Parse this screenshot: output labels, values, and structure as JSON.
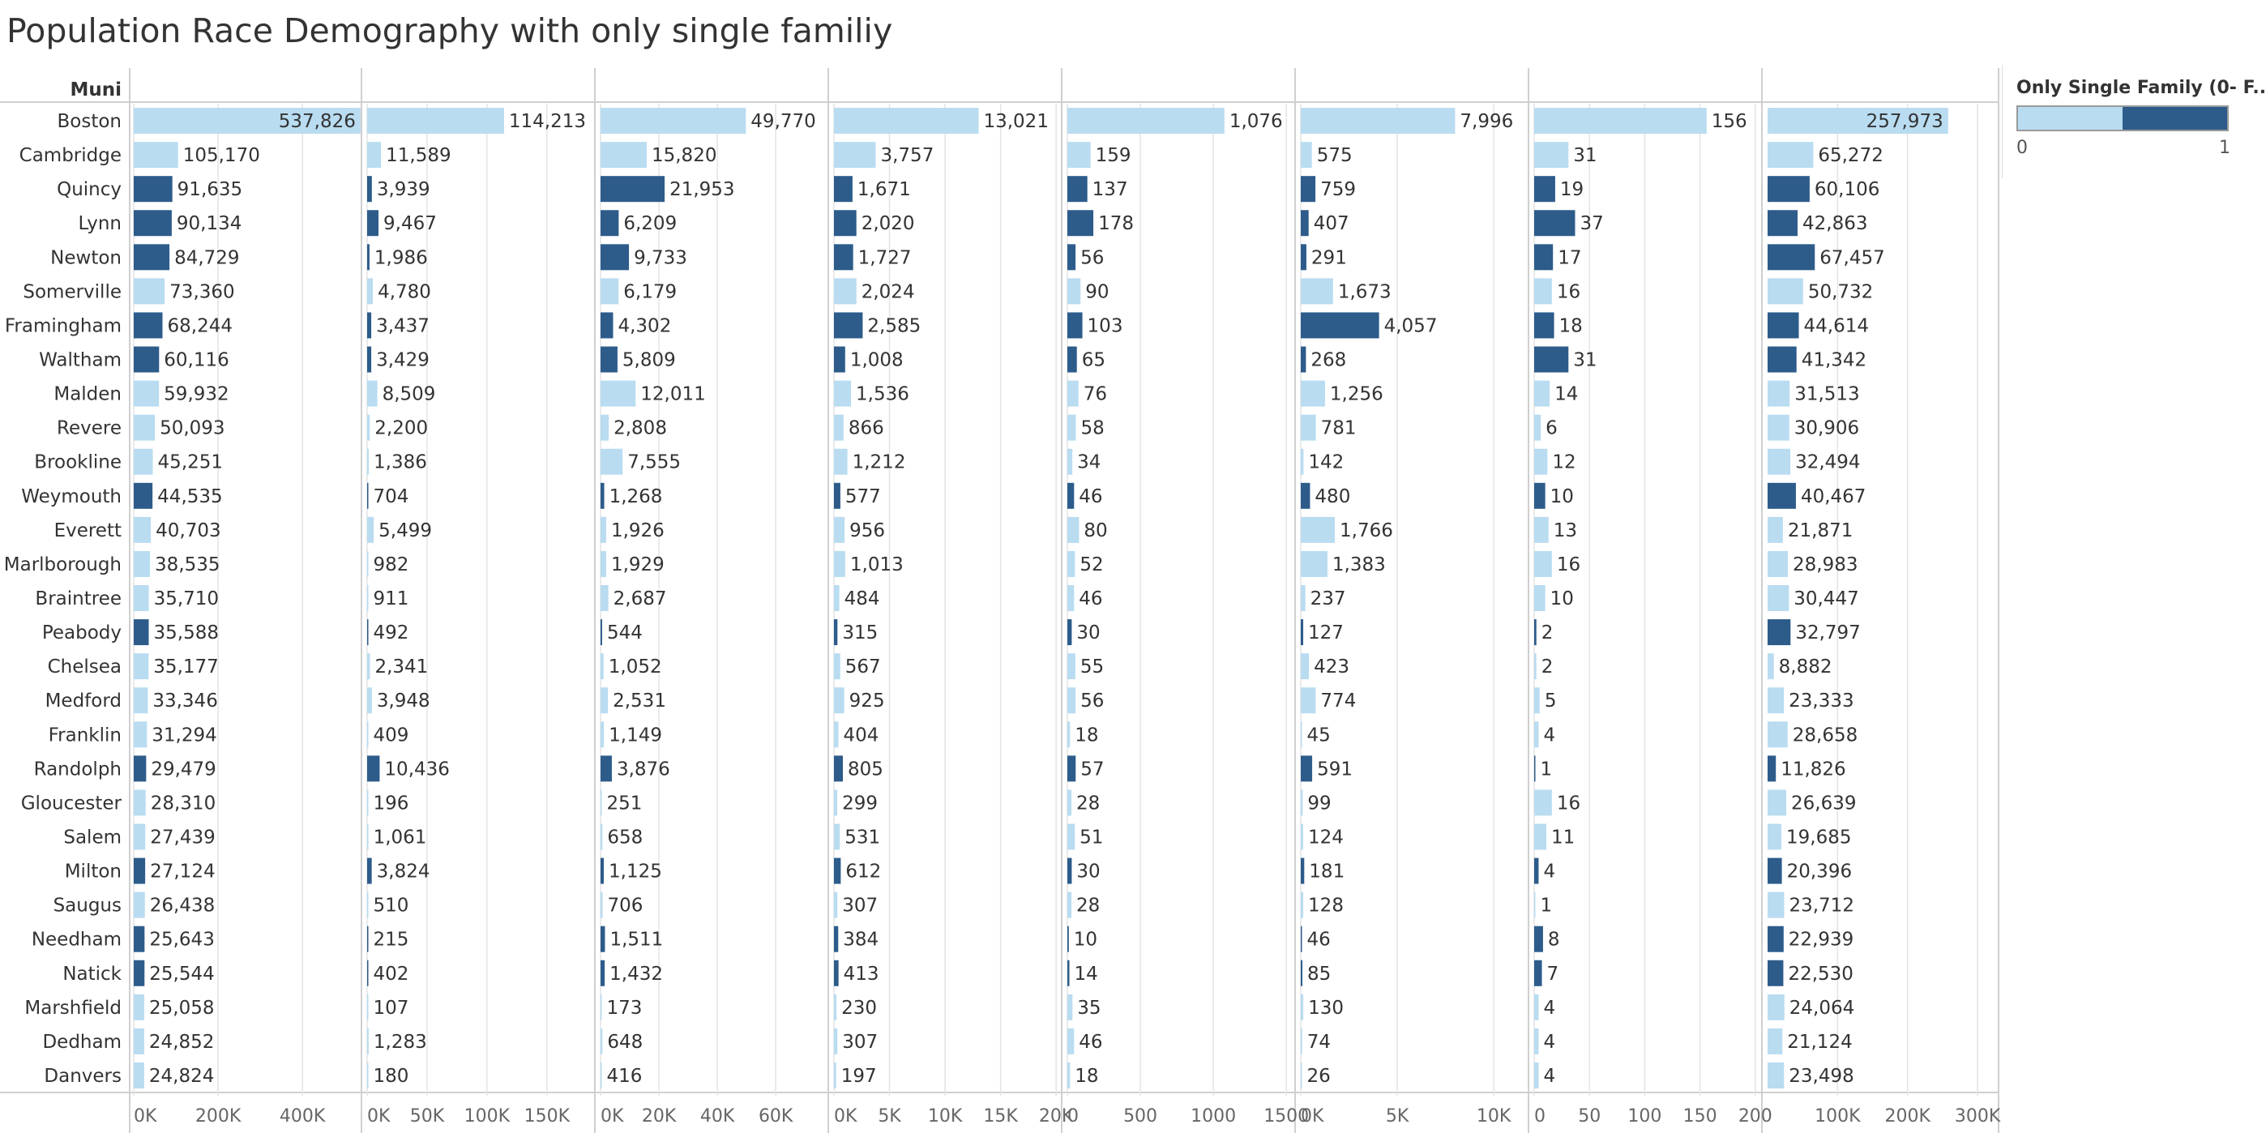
{
  "title": "Population Race Demography with only single familiy",
  "row_header": "Muni",
  "legend": {
    "title": "Only Single Family (0- F..",
    "min_label": "0",
    "max_label": "1"
  },
  "colors": {
    "low": "#b9dcf1",
    "high": "#2d5c8b",
    "gridline": "#e4e4e4",
    "axis": "#cfcfcf",
    "label": "#333333",
    "tick": "#666666"
  },
  "chart_data": {
    "type": "bar",
    "orientation": "horizontal",
    "categories": [
      "Boston",
      "Cambridge",
      "Quincy",
      "Lynn",
      "Newton",
      "Somerville",
      "Framingham",
      "Waltham",
      "Malden",
      "Revere",
      "Brookline",
      "Weymouth",
      "Everett",
      "Marlborough",
      "Braintree",
      "Peabody",
      "Chelsea",
      "Medford",
      "Franklin",
      "Randolph",
      "Gloucester",
      "Salem",
      "Milton",
      "Saugus",
      "Needham",
      "Natick",
      "Marshfield",
      "Dedham",
      "Danvers"
    ],
    "single_family": [
      0,
      0,
      1,
      1,
      1,
      0,
      1,
      1,
      0,
      0,
      0,
      1,
      0,
      0,
      0,
      1,
      0,
      0,
      0,
      1,
      0,
      0,
      1,
      0,
      1,
      1,
      0,
      0,
      0
    ],
    "series": [
      {
        "values": [
          537826,
          105170,
          91635,
          90134,
          84729,
          73360,
          68244,
          60116,
          59932,
          50093,
          45251,
          44535,
          40703,
          38535,
          35710,
          35588,
          35177,
          33346,
          31294,
          29479,
          28310,
          27439,
          27124,
          26438,
          25643,
          25544,
          25058,
          24852,
          24824
        ],
        "labels": [
          "537,826",
          "105,170",
          "91,635",
          "90,134",
          "84,729",
          "73,360",
          "68,244",
          "60,116",
          "59,932",
          "50,093",
          "45,251",
          "44,535",
          "40,703",
          "38,535",
          "35,710",
          "35,588",
          "35,177",
          "33,346",
          "31,294",
          "29,479",
          "28,310",
          "27,439",
          "27,124",
          "26,438",
          "25,643",
          "25,544",
          "25,058",
          "24,852",
          "24,824"
        ],
        "max": 540000,
        "ticks": [
          {
            "v": 0,
            "label": "0K"
          },
          {
            "v": 200000,
            "label": "200K"
          },
          {
            "v": 400000,
            "label": "400K"
          }
        ]
      },
      {
        "values": [
          114213,
          11589,
          3939,
          9467,
          1986,
          4780,
          3437,
          3429,
          8509,
          2200,
          1386,
          704,
          5499,
          982,
          911,
          492,
          2341,
          3948,
          409,
          10436,
          196,
          1061,
          3824,
          510,
          215,
          402,
          107,
          1283,
          180
        ],
        "labels": [
          "114,213",
          "11,589",
          "3,939",
          "9,467",
          "1,986",
          "4,780",
          "3,437",
          "3,429",
          "8,509",
          "2,200",
          "1,386",
          "704",
          "5,499",
          "982",
          "911",
          "492",
          "2,341",
          "3,948",
          "409",
          "10,436",
          "196",
          "1,061",
          "3,824",
          "510",
          "215",
          "402",
          "107",
          "1,283",
          "180"
        ],
        "max": 190000,
        "ticks": [
          {
            "v": 0,
            "label": "0K"
          },
          {
            "v": 50000,
            "label": "50K"
          },
          {
            "v": 100000,
            "label": "100K"
          },
          {
            "v": 150000,
            "label": "150K"
          }
        ]
      },
      {
        "values": [
          49770,
          15820,
          21953,
          6209,
          9733,
          6179,
          4302,
          5809,
          12011,
          2808,
          7555,
          1268,
          1926,
          1929,
          2687,
          544,
          1052,
          2531,
          1149,
          3876,
          251,
          658,
          1125,
          706,
          1511,
          1432,
          173,
          648,
          416
        ],
        "labels": [
          "49,770",
          "15,820",
          "21,953",
          "6,209",
          "9,733",
          "6,179",
          "4,302",
          "5,809",
          "12,011",
          "2,808",
          "7,555",
          "1,268",
          "1,926",
          "1,929",
          "2,687",
          "544",
          "1,052",
          "2,531",
          "1,149",
          "3,876",
          "251",
          "658",
          "1,125",
          "706",
          "1,511",
          "1,432",
          "173",
          "648",
          "416"
        ],
        "max": 78000,
        "ticks": [
          {
            "v": 0,
            "label": "0K"
          },
          {
            "v": 20000,
            "label": "20K"
          },
          {
            "v": 40000,
            "label": "40K"
          },
          {
            "v": 60000,
            "label": "60K"
          }
        ]
      },
      {
        "values": [
          13021,
          3757,
          1671,
          2020,
          1727,
          2024,
          2585,
          1008,
          1536,
          866,
          1212,
          577,
          956,
          1013,
          484,
          315,
          567,
          925,
          404,
          805,
          299,
          531,
          612,
          307,
          384,
          413,
          230,
          307,
          197
        ],
        "labels": [
          "13,021",
          "3,757",
          "1,671",
          "2,020",
          "1,727",
          "2,024",
          "2,585",
          "1,008",
          "1,536",
          "866",
          "1,212",
          "577",
          "956",
          "1,013",
          "484",
          "315",
          "567",
          "925",
          "404",
          "805",
          "299",
          "531",
          "612",
          "307",
          "384",
          "413",
          "230",
          "307",
          "197"
        ],
        "max": 20500,
        "ticks": [
          {
            "v": 0,
            "label": "0K"
          },
          {
            "v": 5000,
            "label": "5K"
          },
          {
            "v": 10000,
            "label": "10K"
          },
          {
            "v": 15000,
            "label": "15K"
          },
          {
            "v": 20000,
            "label": "20K"
          }
        ]
      },
      {
        "values": [
          1076,
          159,
          137,
          178,
          56,
          90,
          103,
          65,
          76,
          58,
          34,
          46,
          80,
          52,
          46,
          30,
          55,
          56,
          18,
          57,
          28,
          51,
          30,
          28,
          10,
          14,
          35,
          46,
          18
        ],
        "labels": [
          "1,076",
          "159",
          "137",
          "178",
          "56",
          "90",
          "103",
          "65",
          "76",
          "58",
          "34",
          "46",
          "80",
          "52",
          "46",
          "30",
          "55",
          "56",
          "18",
          "57",
          "28",
          "51",
          "30",
          "28",
          "10",
          "14",
          "35",
          "46",
          "18"
        ],
        "max": 1560,
        "ticks": [
          {
            "v": 0,
            "label": "0"
          },
          {
            "v": 500,
            "label": "500"
          },
          {
            "v": 1000,
            "label": "1000"
          },
          {
            "v": 1500,
            "label": "1500"
          }
        ]
      },
      {
        "values": [
          7996,
          575,
          759,
          407,
          291,
          1673,
          4057,
          268,
          1256,
          781,
          142,
          480,
          1766,
          1383,
          237,
          127,
          423,
          774,
          45,
          591,
          99,
          124,
          181,
          128,
          46,
          85,
          130,
          74,
          26
        ],
        "labels": [
          "7,996",
          "575",
          "759",
          "407",
          "291",
          "1,673",
          "4,057",
          "268",
          "1,256",
          "781",
          "142",
          "480",
          "1,766",
          "1,383",
          "237",
          "127",
          "423",
          "774",
          "45",
          "591",
          "99",
          "124",
          "181",
          "128",
          "46",
          "85",
          "130",
          "74",
          "26"
        ],
        "max": 11800,
        "ticks": [
          {
            "v": 0,
            "label": "0K"
          },
          {
            "v": 5000,
            "label": "5K"
          },
          {
            "v": 10000,
            "label": "10K"
          }
        ]
      },
      {
        "values": [
          156,
          31,
          19,
          37,
          17,
          16,
          18,
          31,
          14,
          6,
          12,
          10,
          13,
          16,
          10,
          2,
          2,
          5,
          4,
          1,
          16,
          11,
          4,
          1,
          8,
          7,
          4,
          4,
          4
        ],
        "labels": [
          "156",
          "31",
          "19",
          "37",
          "17",
          "16",
          "18",
          "31",
          "14",
          "6",
          "12",
          "10",
          "13",
          "16",
          "10",
          "2",
          "2",
          "5",
          "4",
          "1",
          "16",
          "11",
          "4",
          "1",
          "8",
          "7",
          "4",
          "4",
          "4"
        ],
        "max": 206,
        "ticks": [
          {
            "v": 0,
            "label": "0"
          },
          {
            "v": 50,
            "label": "50"
          },
          {
            "v": 100,
            "label": "100"
          },
          {
            "v": 150,
            "label": "150"
          },
          {
            "v": 200,
            "label": "200"
          }
        ]
      },
      {
        "values": [
          257973,
          65272,
          60106,
          42863,
          67457,
          50732,
          44614,
          41342,
          31513,
          30906,
          32494,
          40467,
          21871,
          28983,
          30447,
          32797,
          8882,
          23333,
          28658,
          11826,
          26639,
          19685,
          20396,
          23712,
          22939,
          22530,
          24064,
          21124,
          23498
        ],
        "labels": [
          "257,973",
          "65,272",
          "60,106",
          "42,863",
          "67,457",
          "50,732",
          "44,614",
          "41,342",
          "31,513",
          "30,906",
          "32,494",
          "40,467",
          "21,871",
          "28,983",
          "30,447",
          "32,797",
          "8,882",
          "23,333",
          "28,658",
          "11,826",
          "26,639",
          "19,685",
          "20,396",
          "23,712",
          "22,939",
          "22,530",
          "24,064",
          "21,124",
          "23,498"
        ],
        "max": 330000,
        "ticks": [
          {
            "v": 100000,
            "label": "100K"
          },
          {
            "v": 200000,
            "label": "200K"
          },
          {
            "v": 300000,
            "label": "300K"
          }
        ]
      }
    ]
  }
}
